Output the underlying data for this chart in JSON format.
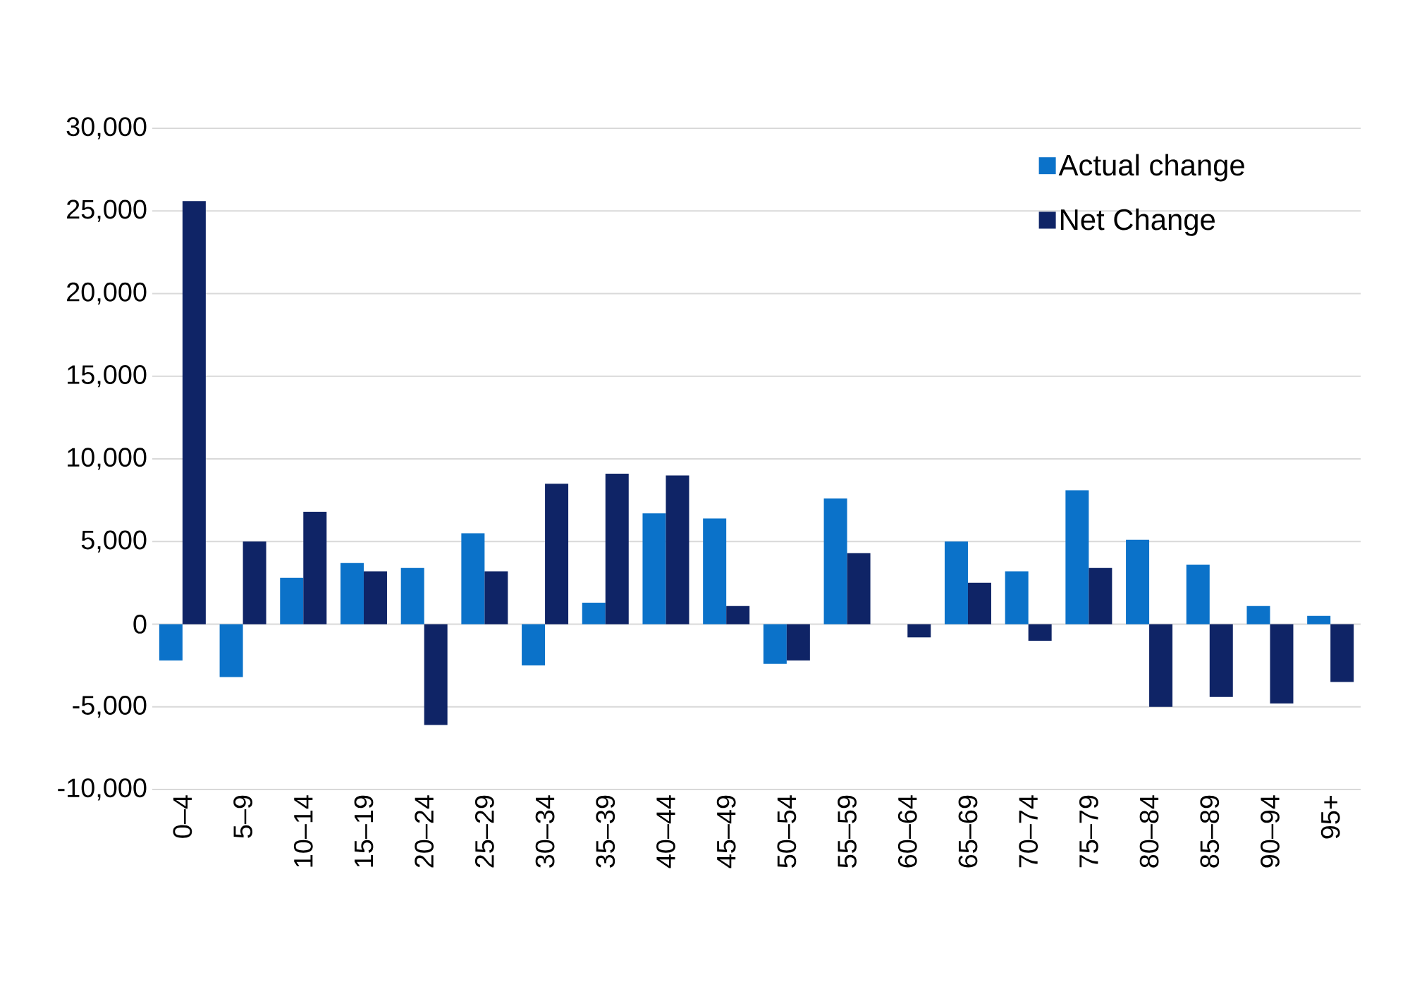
{
  "chart_data": {
    "type": "bar",
    "categories": [
      "0–4",
      "5–9",
      "10–14",
      "15–19",
      "20–24",
      "25–29",
      "30–34",
      "35–39",
      "40–44",
      "45–49",
      "50–54",
      "55–59",
      "60–64",
      "65–69",
      "70–74",
      "75–79",
      "80–84",
      "85–89",
      "90–94",
      "95+"
    ],
    "series": [
      {
        "name": "Actual change",
        "color": "#0b72c9",
        "values": [
          -2200,
          -3200,
          2800,
          3700,
          3400,
          5500,
          -2500,
          1300,
          6700,
          6400,
          -2400,
          7600,
          0,
          5000,
          3200,
          8100,
          5100,
          3600,
          1100,
          500
        ]
      },
      {
        "name": "Net Change",
        "color": "#0f2466",
        "values": [
          25600,
          5000,
          6800,
          3200,
          -6100,
          3200,
          8500,
          9100,
          9000,
          1100,
          -2200,
          4300,
          -800,
          2500,
          -1000,
          3400,
          -5000,
          -4400,
          -4800,
          -3500
        ]
      }
    ],
    "ylim": [
      -10000,
      30000
    ],
    "yticks": [
      {
        "value": -10000,
        "label": "-10,000"
      },
      {
        "value": -5000,
        "label": "-5,000"
      },
      0,
      {
        "value": 5000,
        "label": "5,000"
      },
      {
        "value": 10000,
        "label": "10,000"
      },
      {
        "value": 15000,
        "label": "15,000"
      },
      {
        "value": 20000,
        "label": "20,000"
      },
      {
        "value": 25000,
        "label": "25,000"
      },
      {
        "value": 30000,
        "label": "30,000"
      }
    ],
    "grid": "y",
    "legend": "top right"
  }
}
